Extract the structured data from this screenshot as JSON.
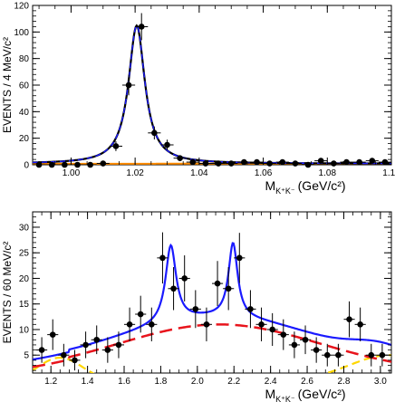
{
  "chart_data": [
    {
      "type": "scatter",
      "title": "",
      "xlabel": "M",
      "xlabel_sub": "K⁺K⁻",
      "xlabel_unit": "(GeV/c²)",
      "ylabel": "EVENTS / 4 MeV/c²",
      "xlim": [
        0.988,
        1.1
      ],
      "ylim": [
        0,
        120
      ],
      "x_ticks": [
        1.0,
        1.02,
        1.04,
        1.06,
        1.08,
        1.1
      ],
      "x_tick_labels": [
        "1.00",
        "1.02",
        "1.04",
        "1.06",
        "1.08",
        "1.10"
      ],
      "y_ticks": [
        0,
        20,
        40,
        60,
        80,
        100,
        120
      ],
      "y_tick_labels": [
        "0",
        "20",
        "40",
        "60",
        "80",
        "100",
        "120"
      ],
      "grid": false,
      "colors": {
        "data": "#000000",
        "total_fit": "#000000",
        "signal_fit": "#1a1aff",
        "background": "#ff8c00"
      },
      "points": [
        {
          "x": 0.99,
          "y": 0,
          "err": 0.8
        },
        {
          "x": 0.994,
          "y": 0,
          "err": 0.8
        },
        {
          "x": 0.998,
          "y": 0,
          "err": 0.8
        },
        {
          "x": 1.002,
          "y": 0,
          "err": 0.8
        },
        {
          "x": 1.006,
          "y": 0,
          "err": 0.8
        },
        {
          "x": 1.01,
          "y": 1,
          "err": 1.0
        },
        {
          "x": 1.014,
          "y": 14,
          "err": 3.7
        },
        {
          "x": 1.018,
          "y": 60,
          "err": 7.7
        },
        {
          "x": 1.022,
          "y": 104,
          "err": 10.2
        },
        {
          "x": 1.026,
          "y": 24,
          "err": 4.9
        },
        {
          "x": 1.03,
          "y": 15,
          "err": 3.9
        },
        {
          "x": 1.034,
          "y": 5,
          "err": 2.2
        },
        {
          "x": 1.038,
          "y": 2,
          "err": 1.4
        },
        {
          "x": 1.042,
          "y": 1,
          "err": 1.0
        },
        {
          "x": 1.046,
          "y": 1,
          "err": 1.0
        },
        {
          "x": 1.05,
          "y": 1,
          "err": 1.0
        },
        {
          "x": 1.054,
          "y": 2,
          "err": 1.4
        },
        {
          "x": 1.058,
          "y": 2,
          "err": 1.4
        },
        {
          "x": 1.062,
          "y": 1,
          "err": 1.0
        },
        {
          "x": 1.066,
          "y": 2,
          "err": 1.4
        },
        {
          "x": 1.07,
          "y": 1,
          "err": 1.0
        },
        {
          "x": 1.074,
          "y": 0,
          "err": 0.8
        },
        {
          "x": 1.078,
          "y": 3,
          "err": 1.7
        },
        {
          "x": 1.082,
          "y": 1,
          "err": 1.0
        },
        {
          "x": 1.086,
          "y": 2,
          "err": 1.4
        },
        {
          "x": 1.09,
          "y": 2,
          "err": 1.4
        },
        {
          "x": 1.094,
          "y": 3,
          "err": 1.7
        },
        {
          "x": 1.098,
          "y": 2,
          "err": 1.4
        }
      ],
      "x_bin_halfwidth": 0.002
    },
    {
      "type": "scatter",
      "title": "",
      "xlabel": "M",
      "xlabel_sub": "K⁺K⁻",
      "xlabel_unit": "(GeV/c²)",
      "ylabel": "EVENTS / 60 MeV/c²",
      "xlim": [
        1.1,
        3.06
      ],
      "ylim": [
        1.5,
        33
      ],
      "x_ticks": [
        1.2,
        1.4,
        1.6,
        1.8,
        2.0,
        2.2,
        2.4,
        2.6,
        2.8,
        3.0
      ],
      "x_tick_labels": [
        "1.2",
        "1.4",
        "1.6",
        "1.8",
        "2.0",
        "2.2",
        "2.4",
        "2.6",
        "2.8",
        "3.0"
      ],
      "y_ticks": [
        5,
        10,
        15,
        20,
        25,
        30
      ],
      "y_tick_labels": [
        "5",
        "10",
        "15",
        "20",
        "25",
        "30"
      ],
      "grid": false,
      "colors": {
        "data": "#000000",
        "total_fit": "#1a1aff",
        "background": "#e8141c",
        "other_background": "#ffd700"
      },
      "points": [
        {
          "x": 1.15,
          "y": 6,
          "err": 2.5
        },
        {
          "x": 1.21,
          "y": 9,
          "err": 3.0
        },
        {
          "x": 1.27,
          "y": 5,
          "err": 2.2
        },
        {
          "x": 1.33,
          "y": 4,
          "err": 2.0
        },
        {
          "x": 1.39,
          "y": 7,
          "err": 2.6
        },
        {
          "x": 1.45,
          "y": 8,
          "err": 2.8
        },
        {
          "x": 1.51,
          "y": 6,
          "err": 2.5
        },
        {
          "x": 1.57,
          "y": 7,
          "err": 2.6
        },
        {
          "x": 1.63,
          "y": 11,
          "err": 3.3
        },
        {
          "x": 1.69,
          "y": 13,
          "err": 3.6
        },
        {
          "x": 1.75,
          "y": 11,
          "err": 3.3
        },
        {
          "x": 1.81,
          "y": 24,
          "err": 5.0
        },
        {
          "x": 1.87,
          "y": 18,
          "err": 4.2
        },
        {
          "x": 1.93,
          "y": 20,
          "err": 4.5
        },
        {
          "x": 1.99,
          "y": 14,
          "err": 3.7
        },
        {
          "x": 2.05,
          "y": 11,
          "err": 3.3
        },
        {
          "x": 2.11,
          "y": 19,
          "err": 4.4
        },
        {
          "x": 2.17,
          "y": 18,
          "err": 4.2
        },
        {
          "x": 2.23,
          "y": 24,
          "err": 4.9
        },
        {
          "x": 2.29,
          "y": 14,
          "err": 3.7
        },
        {
          "x": 2.35,
          "y": 11,
          "err": 3.3
        },
        {
          "x": 2.41,
          "y": 10,
          "err": 3.2
        },
        {
          "x": 2.47,
          "y": 9,
          "err": 3.0
        },
        {
          "x": 2.53,
          "y": 7,
          "err": 2.6
        },
        {
          "x": 2.59,
          "y": 8,
          "err": 2.8
        },
        {
          "x": 2.65,
          "y": 6,
          "err": 2.5
        },
        {
          "x": 2.71,
          "y": 5,
          "err": 2.2
        },
        {
          "x": 2.77,
          "y": 5,
          "err": 2.2
        },
        {
          "x": 2.83,
          "y": 12,
          "err": 3.5
        },
        {
          "x": 2.89,
          "y": 11,
          "err": 3.3
        },
        {
          "x": 2.95,
          "y": 5,
          "err": 2.2
        },
        {
          "x": 3.01,
          "y": 5,
          "err": 2.2
        }
      ],
      "x_bin_halfwidth": 0.03
    }
  ]
}
